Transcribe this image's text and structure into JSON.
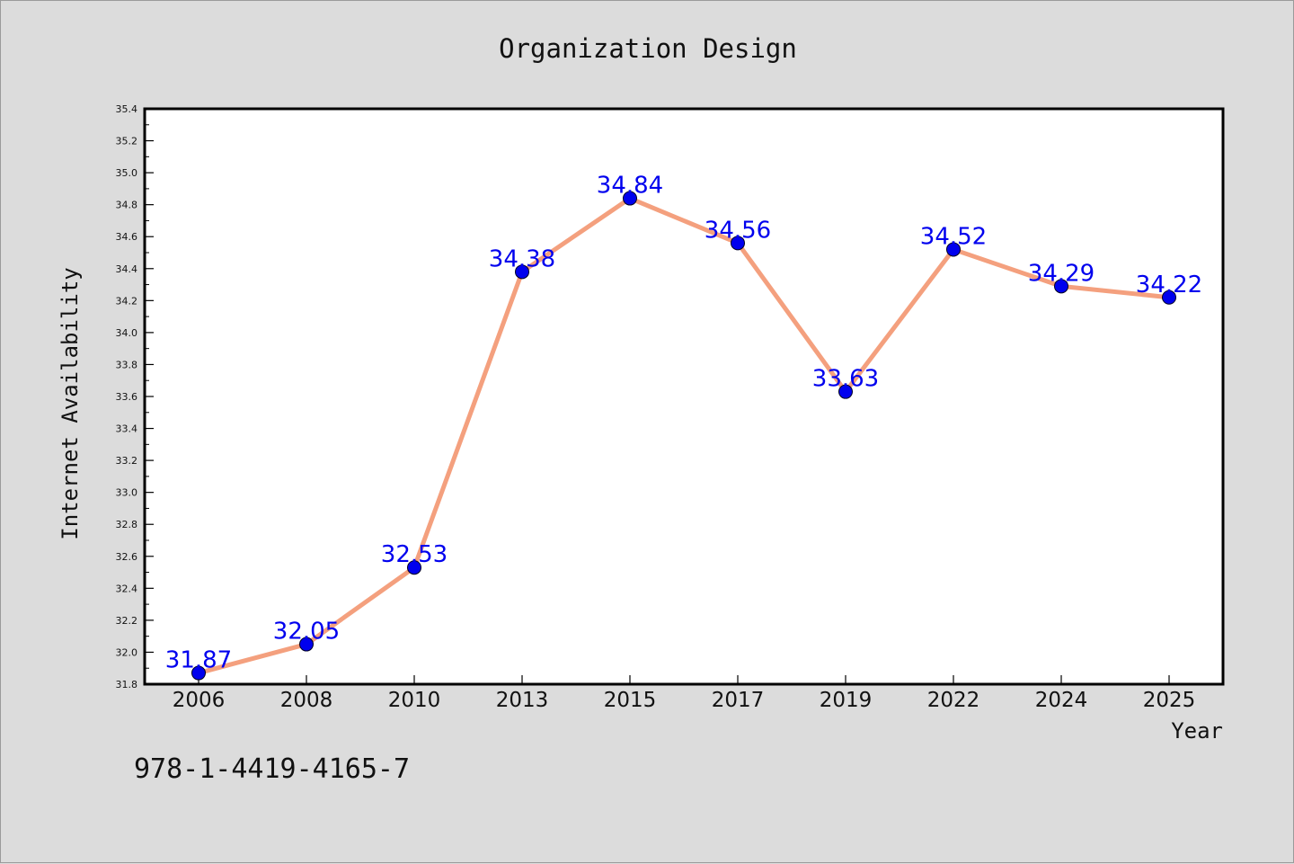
{
  "chart_data": {
    "type": "line",
    "title": "Organization Design",
    "xlabel": "Year",
    "ylabel": "Internet Availability",
    "categories": [
      "2006",
      "2008",
      "2010",
      "2013",
      "2015",
      "2017",
      "2019",
      "2022",
      "2024",
      "2025"
    ],
    "series": [
      {
        "values": [
          31.87,
          32.05,
          32.53,
          34.38,
          34.84,
          34.56,
          33.63,
          34.52,
          34.29,
          34.22
        ],
        "labels": [
          "31.87",
          "32.05",
          "32.53",
          "34.38",
          "34.84",
          "34.56",
          "33.63",
          "34.52",
          "34.29",
          "34.22"
        ],
        "line_color": "#f4a07e",
        "marker_color": "#0000ee"
      }
    ],
    "ylim": [
      31.8,
      35.4
    ],
    "yticks": [
      "31.8",
      "32.0",
      "32.2",
      "32.4",
      "32.6",
      "32.8",
      "33.0",
      "33.2",
      "33.4",
      "33.6",
      "33.8",
      "34.0",
      "34.2",
      "34.4",
      "34.6",
      "34.8",
      "35.0",
      "35.2",
      "35.4"
    ],
    "grid": false,
    "legend": "none"
  },
  "footer": {
    "isbn": "978-1-4419-4165-7"
  },
  "colors": {
    "background": "#dcdcdc",
    "plot_background": "#ffffff",
    "line": "#f4a07e",
    "marker": "#0000ee",
    "label": "#0000ee"
  }
}
